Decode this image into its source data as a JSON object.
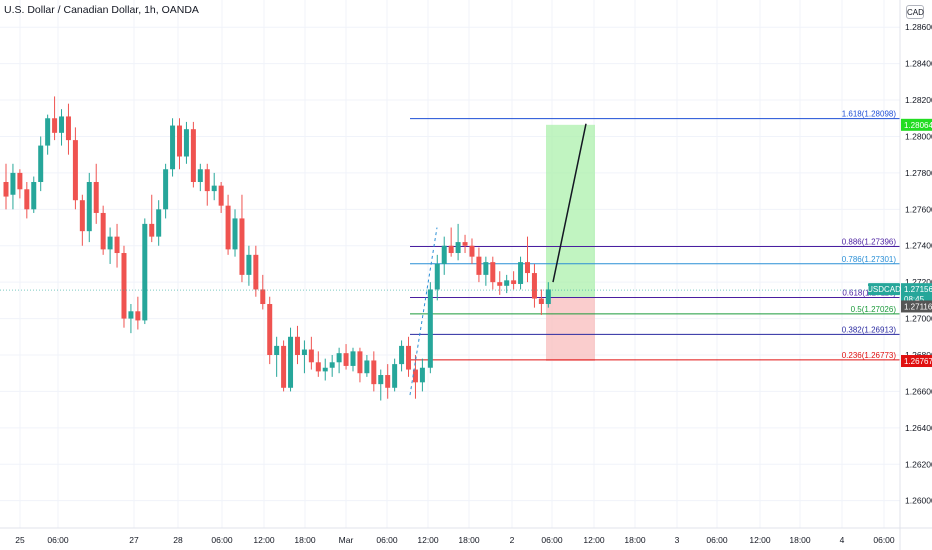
{
  "header": {
    "title": "U.S. Dollar / Canadian Dollar, 1h, OANDA",
    "currency_button": "CAD"
  },
  "price_axis": {
    "ticks": [
      "1.26000",
      "1.26200",
      "1.26400",
      "1.26600",
      "1.26800",
      "1.27000",
      "1.27200",
      "1.27400",
      "1.27600",
      "1.27800",
      "1.28000",
      "1.28200",
      "1.28400",
      "1.28600"
    ],
    "badges": [
      {
        "label": "1.28064",
        "value": 1.28064,
        "bg": "#22dd22",
        "fg": "#131722"
      },
      {
        "label": "1.27156",
        "value": 1.27156,
        "bg": "#26a69a",
        "fg": "#ffffff",
        "name": "USDCAD",
        "countdown": "08:45"
      },
      {
        "label": "1.27116",
        "value": 1.27116,
        "bg": "#555555",
        "fg": "#ffffff"
      },
      {
        "label": "1.26767",
        "value": 1.26767,
        "bg": "#e01010",
        "fg": "#ffffff"
      }
    ]
  },
  "time_axis": {
    "labels": [
      "25",
      "06:00",
      "27",
      "28",
      "06:00",
      "12:00",
      "18:00",
      "Mar",
      "06:00",
      "12:00",
      "18:00",
      "2",
      "06:00",
      "12:00",
      "18:00",
      "3",
      "06:00",
      "12:00",
      "18:00",
      "4",
      "06:00"
    ]
  },
  "fib_levels": [
    {
      "label": "1.618(1.28098)",
      "value": 1.28098,
      "color": "#1e4fd6"
    },
    {
      "label": "0.886(1.27396)",
      "value": 1.27396,
      "color": "#4a1fa0"
    },
    {
      "label": "0.786(1.27301)",
      "value": 1.27301,
      "color": "#2a8fd6"
    },
    {
      "label": "0.618(1.27116)",
      "value": 1.27116,
      "color": "#4a1fa0"
    },
    {
      "label": "0.5(1.27026)",
      "value": 1.27026,
      "color": "#1a9a3a"
    },
    {
      "label": "0.382(1.26913)",
      "value": 1.26913,
      "color": "#2a2aa0"
    },
    {
      "label": "0.236(1.26773)",
      "value": 1.26773,
      "color": "#e01010"
    }
  ],
  "position_tool": {
    "entry": 1.27116,
    "target": 1.28064,
    "stop": 1.26767,
    "profit_color": "#a6f0a6",
    "loss_color": "#f8b8b8"
  },
  "colors": {
    "up": "#26a69a",
    "down": "#ef5350",
    "grid": "#f0f3fa"
  },
  "chart_data": {
    "type": "candlestick",
    "symbol": "USDCAD",
    "interval": "1h",
    "ylim": [
      1.2585,
      1.287
    ],
    "candles": [
      [
        1.2775,
        1.2785,
        1.276,
        1.2767
      ],
      [
        1.2768,
        1.2785,
        1.276,
        1.278
      ],
      [
        1.278,
        1.2782,
        1.2766,
        1.2771
      ],
      [
        1.2771,
        1.2775,
        1.2755,
        1.276
      ],
      [
        1.276,
        1.2778,
        1.2758,
        1.2775
      ],
      [
        1.2775,
        1.28,
        1.277,
        1.2795
      ],
      [
        1.2795,
        1.2812,
        1.279,
        1.281
      ],
      [
        1.281,
        1.2822,
        1.2798,
        1.2802
      ],
      [
        1.2802,
        1.2815,
        1.2795,
        1.2811
      ],
      [
        1.2811,
        1.2818,
        1.279,
        1.2798
      ],
      [
        1.2798,
        1.2805,
        1.276,
        1.2765
      ],
      [
        1.2765,
        1.2768,
        1.274,
        1.2748
      ],
      [
        1.2748,
        1.278,
        1.2742,
        1.2775
      ],
      [
        1.2775,
        1.2785,
        1.2752,
        1.2758
      ],
      [
        1.2758,
        1.2762,
        1.2735,
        1.2738
      ],
      [
        1.2738,
        1.275,
        1.273,
        1.2745
      ],
      [
        1.2745,
        1.2752,
        1.2728,
        1.2736
      ],
      [
        1.2736,
        1.274,
        1.2695,
        1.27
      ],
      [
        1.27,
        1.2708,
        1.2692,
        1.2704
      ],
      [
        1.2704,
        1.2712,
        1.2694,
        1.2699
      ],
      [
        1.2699,
        1.2755,
        1.2697,
        1.2752
      ],
      [
        1.2752,
        1.2768,
        1.2742,
        1.2745
      ],
      [
        1.2745,
        1.2765,
        1.274,
        1.276
      ],
      [
        1.276,
        1.2785,
        1.2755,
        1.2782
      ],
      [
        1.2782,
        1.281,
        1.2778,
        1.2806
      ],
      [
        1.2806,
        1.281,
        1.2782,
        1.2789
      ],
      [
        1.2789,
        1.2808,
        1.2785,
        1.2804
      ],
      [
        1.2804,
        1.2808,
        1.2772,
        1.2775
      ],
      [
        1.2775,
        1.2785,
        1.277,
        1.2782
      ],
      [
        1.2782,
        1.2785,
        1.2762,
        1.277
      ],
      [
        1.277,
        1.278,
        1.2765,
        1.2773
      ],
      [
        1.2773,
        1.2775,
        1.2758,
        1.2762
      ],
      [
        1.2762,
        1.2768,
        1.2735,
        1.2738
      ],
      [
        1.2738,
        1.276,
        1.2734,
        1.2755
      ],
      [
        1.2755,
        1.2768,
        1.272,
        1.2724
      ],
      [
        1.2724,
        1.274,
        1.2718,
        1.2735
      ],
      [
        1.2735,
        1.274,
        1.2712,
        1.2716
      ],
      [
        1.2716,
        1.2724,
        1.2705,
        1.2708
      ],
      [
        1.2708,
        1.2712,
        1.2675,
        1.268
      ],
      [
        1.268,
        1.269,
        1.2668,
        1.2685
      ],
      [
        1.2685,
        1.2688,
        1.266,
        1.2662
      ],
      [
        1.2662,
        1.2695,
        1.266,
        1.269
      ],
      [
        1.269,
        1.2696,
        1.2675,
        1.268
      ],
      [
        1.268,
        1.2688,
        1.267,
        1.2683
      ],
      [
        1.2683,
        1.269,
        1.2672,
        1.2676
      ],
      [
        1.2676,
        1.2682,
        1.2668,
        1.2671
      ],
      [
        1.2671,
        1.2678,
        1.2666,
        1.2673
      ],
      [
        1.2673,
        1.268,
        1.2668,
        1.2676
      ],
      [
        1.2676,
        1.2684,
        1.267,
        1.2681
      ],
      [
        1.2681,
        1.2686,
        1.2672,
        1.2674
      ],
      [
        1.2674,
        1.2684,
        1.2671,
        1.2682
      ],
      [
        1.2682,
        1.2684,
        1.2665,
        1.267
      ],
      [
        1.267,
        1.268,
        1.2668,
        1.2677
      ],
      [
        1.2677,
        1.2682,
        1.266,
        1.2664
      ],
      [
        1.2664,
        1.2672,
        1.2655,
        1.2669
      ],
      [
        1.2669,
        1.2675,
        1.2656,
        1.2662
      ],
      [
        1.2662,
        1.2678,
        1.266,
        1.2675
      ],
      [
        1.2675,
        1.2688,
        1.2671,
        1.2685
      ],
      [
        1.2685,
        1.269,
        1.2668,
        1.2672
      ],
      [
        1.2672,
        1.268,
        1.2656,
        1.2665
      ],
      [
        1.2665,
        1.2678,
        1.266,
        1.2673
      ],
      [
        1.2673,
        1.272,
        1.267,
        1.2716
      ],
      [
        1.2716,
        1.2735,
        1.271,
        1.273
      ],
      [
        1.273,
        1.2745,
        1.2724,
        1.274
      ],
      [
        1.274,
        1.275,
        1.2734,
        1.2736
      ],
      [
        1.2736,
        1.2752,
        1.2732,
        1.2742
      ],
      [
        1.2742,
        1.2746,
        1.2736,
        1.274
      ],
      [
        1.274,
        1.2744,
        1.273,
        1.2734
      ],
      [
        1.2734,
        1.2739,
        1.272,
        1.2724
      ],
      [
        1.2724,
        1.2734,
        1.2718,
        1.2731
      ],
      [
        1.2731,
        1.2734,
        1.2716,
        1.272
      ],
      [
        1.272,
        1.2726,
        1.2713,
        1.2718
      ],
      [
        1.2718,
        1.2724,
        1.2714,
        1.2721
      ],
      [
        1.2721,
        1.2726,
        1.2716,
        1.2719
      ],
      [
        1.2719,
        1.2734,
        1.2716,
        1.2731
      ],
      [
        1.2731,
        1.2745,
        1.272,
        1.2725
      ],
      [
        1.2725,
        1.273,
        1.2706,
        1.2711
      ],
      [
        1.2711,
        1.2716,
        1.2702,
        1.2708
      ],
      [
        1.2708,
        1.272,
        1.2706,
        1.2716
      ]
    ]
  }
}
